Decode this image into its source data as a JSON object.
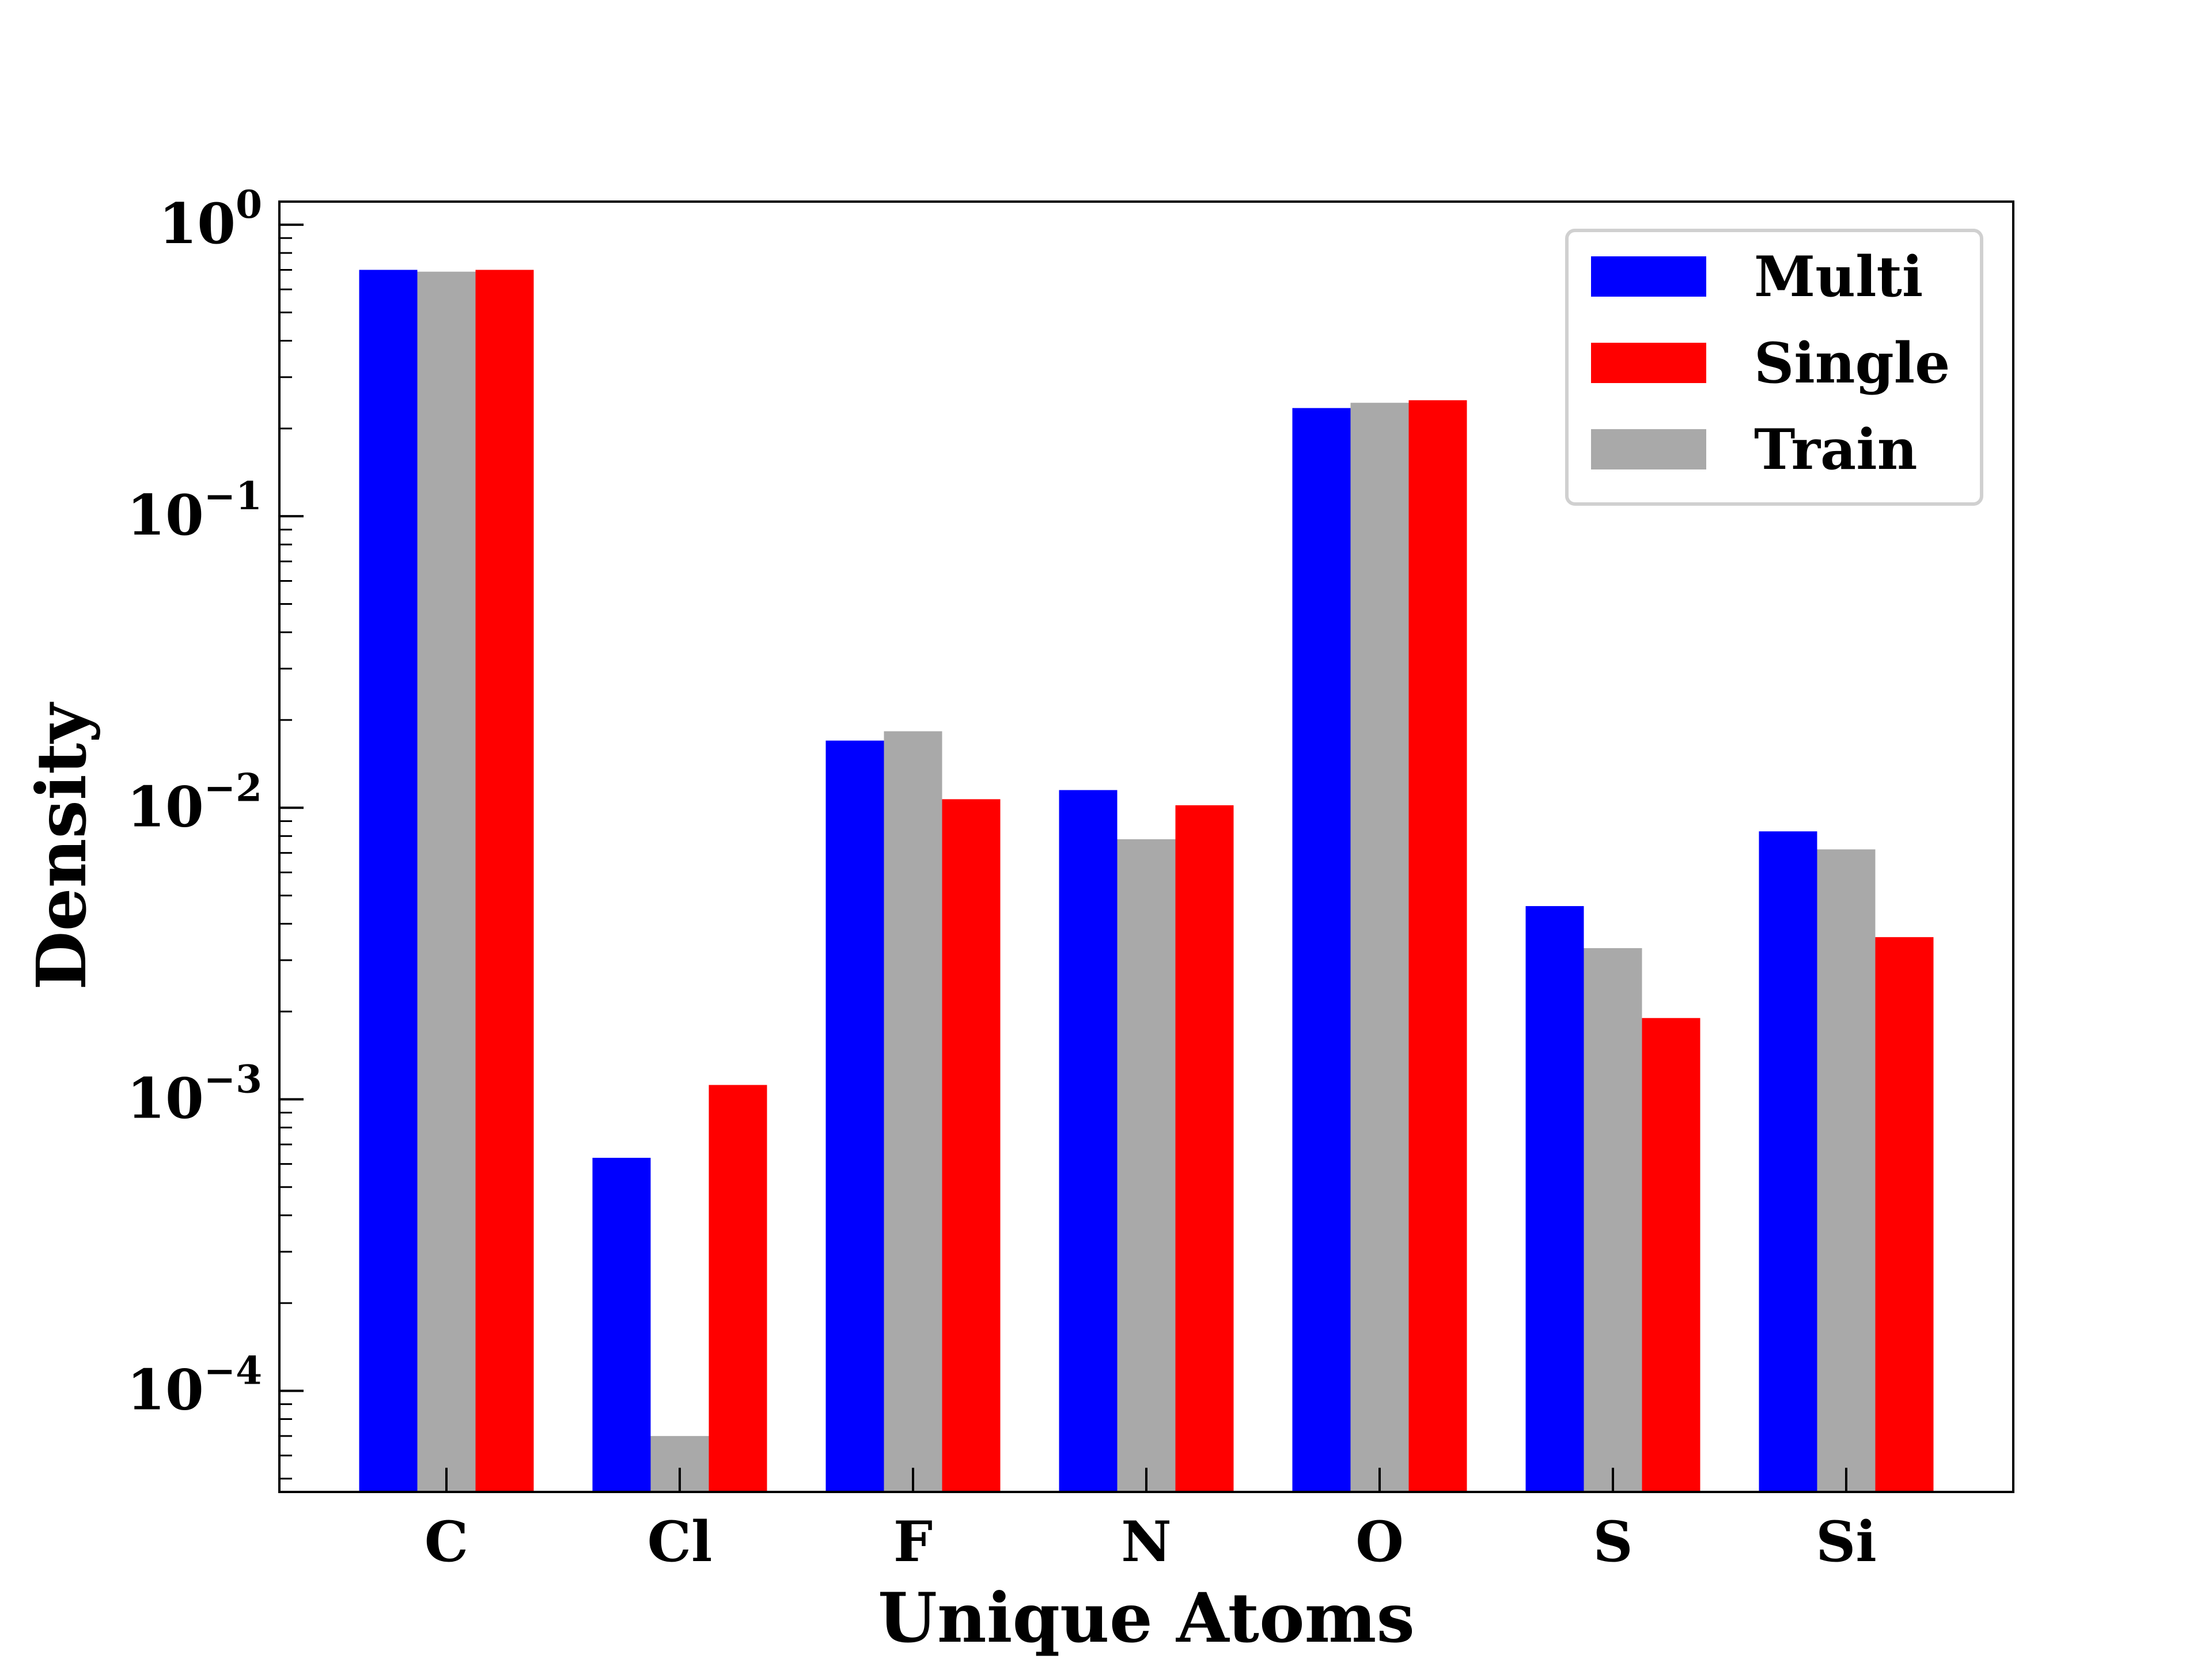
{
  "chart_data": {
    "type": "bar",
    "xlabel": "Unique Atoms",
    "ylabel": "Density",
    "yscale": "log",
    "ylim": [
      4.5e-05,
      1.2
    ],
    "yticks": [
      {
        "value": 1,
        "base": "10",
        "exp": "0"
      },
      {
        "value": 0.1,
        "base": "10",
        "exp": "−1"
      },
      {
        "value": 0.01,
        "base": "10",
        "exp": "−2"
      },
      {
        "value": 0.001,
        "base": "10",
        "exp": "−3"
      },
      {
        "value": 0.0001,
        "base": "10",
        "exp": "−4"
      }
    ],
    "categories": [
      "C",
      "Cl",
      "F",
      "N",
      "O",
      "S",
      "Si"
    ],
    "series": [
      {
        "name": "Multi",
        "color": "#0000ff",
        "values": [
          0.7,
          0.00063,
          0.017,
          0.0115,
          0.235,
          0.0046,
          0.0083
        ]
      },
      {
        "name": "Train",
        "color": "#a9a9a9",
        "values": [
          0.69,
          7e-05,
          0.0183,
          0.0078,
          0.245,
          0.0033,
          0.0072
        ]
      },
      {
        "name": "Single",
        "color": "#ff0000",
        "values": [
          0.7,
          0.00112,
          0.0107,
          0.0102,
          0.25,
          0.0019,
          0.0036
        ]
      }
    ],
    "legend": {
      "position": "top-right",
      "entries": [
        {
          "name": "Multi",
          "color": "#0000ff"
        },
        {
          "name": "Single",
          "color": "#ff0000"
        },
        {
          "name": "Train",
          "color": "#a9a9a9"
        }
      ]
    },
    "grid": false
  }
}
